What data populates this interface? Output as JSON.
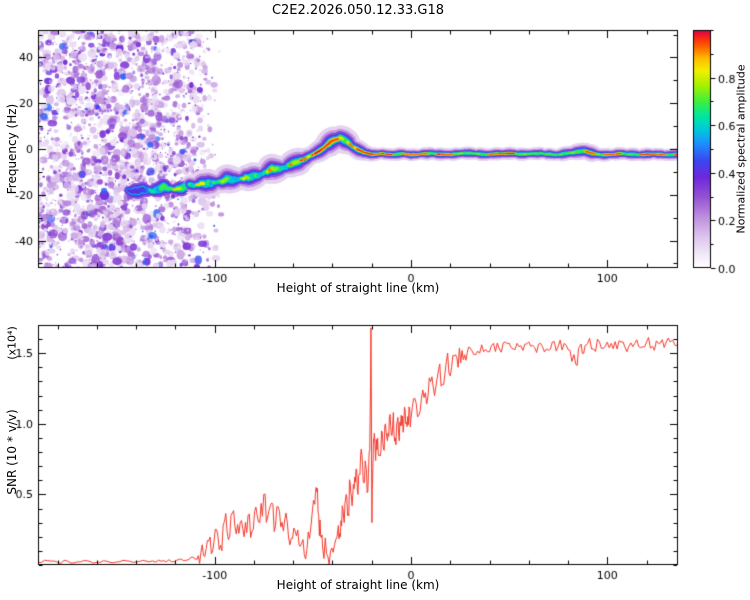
{
  "figure": {
    "background": "#ffffff"
  },
  "chart_data": [
    {
      "type": "heatmap",
      "title": "C2E2.2026.050.12.33.G18",
      "xlabel": "Height of straight line (km)",
      "ylabel": "Frequency (Hz)",
      "xlim": [
        -190,
        136
      ],
      "ylim": [
        -52,
        52
      ],
      "xticks": {
        "values": [
          -100,
          0,
          100
        ],
        "labels": [
          "-100",
          "0",
          "100"
        ],
        "minor_step": 20
      },
      "yticks": {
        "values": [
          -40,
          -20,
          0,
          20,
          40
        ],
        "labels": [
          "-40",
          "-20",
          "0",
          "20",
          "40"
        ],
        "minor_step": 10
      },
      "colorbar": {
        "label": "Normalized spectral amplitude",
        "range": [
          0,
          1
        ],
        "ticks": {
          "values": [
            0,
            0.2,
            0.4,
            0.6,
            0.8
          ],
          "labels": [
            "0.0",
            "0.2",
            "0.4",
            "0.6",
            "0.8"
          ],
          "minor_step": 0.1
        }
      },
      "colormap_stops": [
        [
          0.0,
          "#ffffff"
        ],
        [
          0.05,
          "#f3ecf8"
        ],
        [
          0.13,
          "#ddc4ec"
        ],
        [
          0.22,
          "#bb8ade"
        ],
        [
          0.3,
          "#9450d2"
        ],
        [
          0.38,
          "#6e28dc"
        ],
        [
          0.45,
          "#3c46f0"
        ],
        [
          0.52,
          "#1e8cff"
        ],
        [
          0.58,
          "#00c8dc"
        ],
        [
          0.64,
          "#00e6a0"
        ],
        [
          0.7,
          "#3cf03c"
        ],
        [
          0.77,
          "#aaf000"
        ],
        [
          0.83,
          "#f0f000"
        ],
        [
          0.88,
          "#ffbe00"
        ],
        [
          0.93,
          "#ff6400"
        ],
        [
          0.97,
          "#f52814"
        ],
        [
          1.0,
          "#dc0050"
        ]
      ],
      "noise_region": {
        "x_range": [
          -190,
          -112
        ],
        "amplitude_range": [
          0.05,
          0.45
        ],
        "description": "dense purple speckle noise left of -112 km"
      },
      "trace_centerline": [
        [
          -152,
          -19
        ],
        [
          -140,
          -18
        ],
        [
          -132,
          -18.5
        ],
        [
          -126,
          -17
        ],
        [
          -120,
          -17.5
        ],
        [
          -114,
          -16
        ],
        [
          -108,
          -15.5
        ],
        [
          -102,
          -15
        ],
        [
          -96,
          -14
        ],
        [
          -90,
          -13
        ],
        [
          -84,
          -12
        ],
        [
          -78,
          -11
        ],
        [
          -72,
          -9.5
        ],
        [
          -66,
          -8
        ],
        [
          -60,
          -6
        ],
        [
          -54,
          -4
        ],
        [
          -48,
          -1.5
        ],
        [
          -44,
          1
        ],
        [
          -40,
          3.5
        ],
        [
          -36,
          4.5
        ],
        [
          -32,
          3
        ],
        [
          -28,
          0.5
        ],
        [
          -24,
          -1.5
        ],
        [
          -20,
          -2.5
        ],
        [
          -15,
          -2
        ],
        [
          -10,
          -2.5
        ],
        [
          -5,
          -2
        ],
        [
          0,
          -2.5
        ],
        [
          10,
          -2
        ],
        [
          20,
          -2.5
        ],
        [
          30,
          -2
        ],
        [
          40,
          -2.5
        ],
        [
          50,
          -2
        ],
        [
          58,
          -2.5
        ],
        [
          66,
          -2
        ],
        [
          74,
          -2.5
        ],
        [
          82,
          -1.5
        ],
        [
          88,
          -0.5
        ],
        [
          94,
          -2
        ],
        [
          100,
          -2.5
        ],
        [
          108,
          -2
        ],
        [
          116,
          -2.5
        ],
        [
          124,
          -2
        ],
        [
          130,
          -2.5
        ],
        [
          136,
          -2
        ]
      ],
      "trace_segments": [
        {
          "x_range": [
            -150,
            -60
          ],
          "sigma_hz": 3.1,
          "core_amplitude": 0.62
        },
        {
          "x_range": [
            -60,
            -24
          ],
          "sigma_hz": 2.5,
          "core_amplitude": 0.9
        },
        {
          "x_range": [
            -24,
            136
          ],
          "sigma_hz": 1.7,
          "core_amplitude": 0.78,
          "red_dashes": true
        }
      ]
    },
    {
      "type": "line",
      "xlabel": "Height of straight line (km)",
      "ylabel": "SNR (10 * v/v)",
      "scale_note": "(x10⁴)",
      "xlim": [
        -190,
        136
      ],
      "ylim": [
        0,
        1.7
      ],
      "xticks": {
        "values": [
          -100,
          0,
          100
        ],
        "labels": [
          "-100",
          "0",
          "100"
        ],
        "minor_step": 20
      },
      "yticks": {
        "values": [
          0.5,
          1.0,
          1.5
        ],
        "labels": [
          "0.5",
          "1.0",
          "1.5"
        ],
        "minor_step": 0.1
      },
      "line_color": "#f2382b",
      "series": [
        {
          "name": "SNR",
          "points": [
            [
              -190,
              0.02
            ],
            [
              -185,
              0.03
            ],
            [
              -180,
              0.02
            ],
            [
              -175,
              0.028
            ],
            [
              -170,
              0.022
            ],
            [
              -165,
              0.03
            ],
            [
              -160,
              0.02
            ],
            [
              -155,
              0.027
            ],
            [
              -150,
              0.021
            ],
            [
              -145,
              0.03
            ],
            [
              -140,
              0.022
            ],
            [
              -135,
              0.028
            ],
            [
              -130,
              0.02
            ],
            [
              -126,
              0.03
            ],
            [
              -122,
              0.024
            ],
            [
              -118,
              0.04
            ],
            [
              -115,
              0.032
            ],
            [
              -112,
              0.055
            ],
            [
              -109,
              0.04
            ],
            [
              -107,
              0.09
            ],
            [
              -105,
              0.06
            ],
            [
              -103,
              0.17
            ],
            [
              -101,
              0.1
            ],
            [
              -99,
              0.25
            ],
            [
              -97,
              0.14
            ],
            [
              -95,
              0.31
            ],
            [
              -93,
              0.18
            ],
            [
              -91,
              0.37
            ],
            [
              -89,
              0.22
            ],
            [
              -87,
              0.3
            ],
            [
              -85,
              0.2
            ],
            [
              -83,
              0.35
            ],
            [
              -81,
              0.24
            ],
            [
              -79,
              0.41
            ],
            [
              -77,
              0.3
            ],
            [
              -75,
              0.5
            ],
            [
              -73,
              0.34
            ],
            [
              -71,
              0.44
            ],
            [
              -69,
              0.28
            ],
            [
              -67,
              0.38
            ],
            [
              -65,
              0.24
            ],
            [
              -63,
              0.3
            ],
            [
              -61,
              0.19
            ],
            [
              -59,
              0.24
            ],
            [
              -57,
              0.14
            ],
            [
              -55,
              0.18
            ],
            [
              -53,
              0.11
            ],
            [
              -51,
              0.27
            ],
            [
              -49,
              0.43
            ],
            [
              -48,
              0.52
            ],
            [
              -47,
              0.35
            ],
            [
              -46,
              0.2
            ],
            [
              -45,
              0.12
            ],
            [
              -43,
              0.08
            ],
            [
              -41,
              0.1
            ],
            [
              -39,
              0.14
            ],
            [
              -37,
              0.28
            ],
            [
              -36,
              0.2
            ],
            [
              -35,
              0.42
            ],
            [
              -34,
              0.3
            ],
            [
              -33,
              0.5
            ],
            [
              -32,
              0.36
            ],
            [
              -31,
              0.58
            ],
            [
              -30,
              0.42
            ],
            [
              -29,
              0.54
            ],
            [
              -28,
              0.68
            ],
            [
              -27,
              0.5
            ],
            [
              -26,
              0.64
            ],
            [
              -25,
              0.78
            ],
            [
              -24,
              0.58
            ],
            [
              -23,
              0.7
            ],
            [
              -22,
              0.52
            ],
            [
              -21,
              0.82
            ],
            [
              -20.4,
              1.68
            ],
            [
              -19.9,
              0.3
            ],
            [
              -19.4,
              0.72
            ],
            [
              -19,
              0.88
            ],
            [
              -18,
              0.74
            ],
            [
              -17,
              0.9
            ],
            [
              -16,
              0.78
            ],
            [
              -15,
              0.95
            ],
            [
              -14,
              0.82
            ],
            [
              -13,
              1.0
            ],
            [
              -12,
              0.88
            ],
            [
              -11,
              1.05
            ],
            [
              -10,
              0.92
            ],
            [
              -9,
              1.08
            ],
            [
              -8,
              0.9
            ],
            [
              -7,
              1.02
            ],
            [
              -6,
              0.88
            ],
            [
              -5,
              1.06
            ],
            [
              -4,
              0.94
            ],
            [
              -3,
              1.1
            ],
            [
              -2,
              0.98
            ],
            [
              -1,
              1.12
            ],
            [
              0,
              1.04
            ],
            [
              2,
              1.18
            ],
            [
              4,
              1.06
            ],
            [
              6,
              1.24
            ],
            [
              8,
              1.14
            ],
            [
              10,
              1.3
            ],
            [
              12,
              1.2
            ],
            [
              14,
              1.38
            ],
            [
              16,
              1.28
            ],
            [
              18,
              1.44
            ],
            [
              20,
              1.34
            ],
            [
              22,
              1.48
            ],
            [
              24,
              1.4
            ],
            [
              26,
              1.52
            ],
            [
              28,
              1.45
            ],
            [
              30,
              1.54
            ],
            [
              33,
              1.49
            ],
            [
              36,
              1.56
            ],
            [
              39,
              1.51
            ],
            [
              42,
              1.57
            ],
            [
              45,
              1.53
            ],
            [
              48,
              1.58
            ],
            [
              51,
              1.54
            ],
            [
              54,
              1.57
            ],
            [
              57,
              1.52
            ],
            [
              60,
              1.58
            ],
            [
              63,
              1.54
            ],
            [
              66,
              1.57
            ],
            [
              69,
              1.53
            ],
            [
              72,
              1.58
            ],
            [
              75,
              1.55
            ],
            [
              78,
              1.57
            ],
            [
              81,
              1.52
            ],
            [
              84,
              1.42
            ],
            [
              86,
              1.55
            ],
            [
              88,
              1.5
            ],
            [
              90,
              1.57
            ],
            [
              93,
              1.53
            ],
            [
              96,
              1.58
            ],
            [
              99,
              1.55
            ],
            [
              102,
              1.57
            ],
            [
              105,
              1.53
            ],
            [
              108,
              1.58
            ],
            [
              111,
              1.55
            ],
            [
              114,
              1.57
            ],
            [
              117,
              1.54
            ],
            [
              120,
              1.58
            ],
            [
              123,
              1.55
            ],
            [
              126,
              1.57
            ],
            [
              129,
              1.54
            ],
            [
              132,
              1.58
            ],
            [
              136,
              1.56
            ]
          ]
        }
      ]
    }
  ]
}
